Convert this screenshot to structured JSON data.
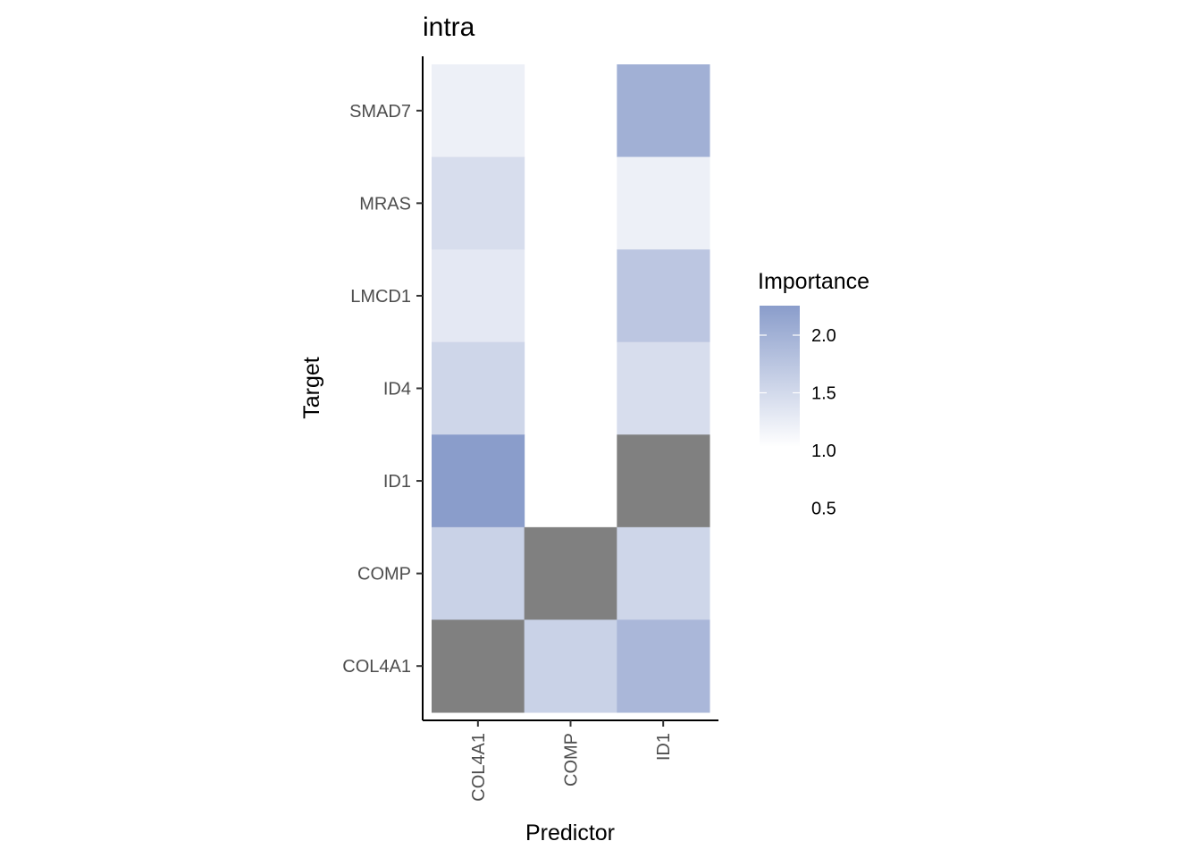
{
  "chart_data": {
    "type": "heatmap",
    "title": "intra",
    "xlabel": "Predictor",
    "ylabel": "Target",
    "x_categories": [
      "COL4A1",
      "COMP",
      "ID1"
    ],
    "y_categories": [
      "COL4A1",
      "COMP",
      "ID1",
      "ID4",
      "LMCD1",
      "MRAS",
      "SMAD7"
    ],
    "cells": [
      {
        "x": "COL4A1",
        "y": "SMAD7",
        "value": 1.2
      },
      {
        "x": "COL4A1",
        "y": "MRAS",
        "value": 1.45
      },
      {
        "x": "COL4A1",
        "y": "LMCD1",
        "value": 1.3
      },
      {
        "x": "COL4A1",
        "y": "ID4",
        "value": 1.55
      },
      {
        "x": "COL4A1",
        "y": "ID1",
        "value": 2.3
      },
      {
        "x": "COL4A1",
        "y": "COMP",
        "value": 1.6
      },
      {
        "x": "COL4A1",
        "y": "COL4A1",
        "value": null
      },
      {
        "x": "COMP",
        "y": "COMP",
        "value": null
      },
      {
        "x": "COMP",
        "y": "COL4A1",
        "value": 1.6
      },
      {
        "x": "ID1",
        "y": "SMAD7",
        "value": 2.05
      },
      {
        "x": "ID1",
        "y": "MRAS",
        "value": 1.2
      },
      {
        "x": "ID1",
        "y": "LMCD1",
        "value": 1.75
      },
      {
        "x": "ID1",
        "y": "ID4",
        "value": 1.45
      },
      {
        "x": "ID1",
        "y": "ID1",
        "value": null
      },
      {
        "x": "ID1",
        "y": "COMP",
        "value": 1.55
      },
      {
        "x": "ID1",
        "y": "COL4A1",
        "value": 1.95
      }
    ],
    "legend": {
      "title": "Importance",
      "labels": [
        "2.0",
        "1.5",
        "1.0",
        "0.5"
      ],
      "ticks": [
        2.0,
        1.5,
        1.0,
        0.5
      ],
      "range": [
        1.0,
        2.3
      ],
      "low_color": "#ffffff",
      "high_color": "#8a9dcb",
      "na_color": "#808080",
      "placement": "right"
    },
    "grid": false
  }
}
